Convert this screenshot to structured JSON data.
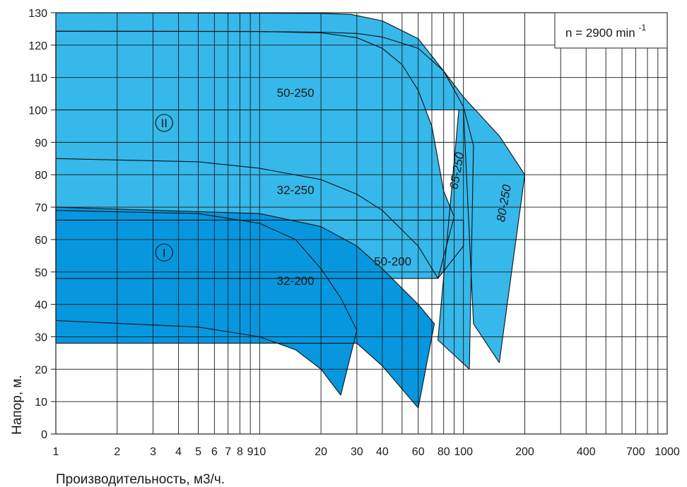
{
  "chart_data": {
    "type": "area",
    "xscale": "log",
    "xlabel": "Производительность, м3/ч.",
    "ylabel": "Напор, м.",
    "xlim": [
      1,
      1000
    ],
    "ylim": [
      0,
      130
    ],
    "grid": true,
    "x_ticks": [
      1,
      2,
      3,
      4,
      5,
      6,
      7,
      8,
      9,
      10,
      20,
      30,
      40,
      50,
      60,
      70,
      80,
      90,
      100,
      200,
      300,
      400,
      500,
      600,
      700,
      800,
      900,
      1000
    ],
    "x_tick_labels": [
      {
        "x": 1,
        "label": "1"
      },
      {
        "x": 2,
        "label": "2"
      },
      {
        "x": 3,
        "label": "3"
      },
      {
        "x": 4,
        "label": "4"
      },
      {
        "x": 5,
        "label": "5"
      },
      {
        "x": 6,
        "label": "6"
      },
      {
        "x": 7,
        "label": "7"
      },
      {
        "x": 8,
        "label": "8"
      },
      {
        "x": 9,
        "label": "9"
      },
      {
        "x": 10,
        "label": "10"
      },
      {
        "x": 20,
        "label": "20"
      },
      {
        "x": 30,
        "label": "30"
      },
      {
        "x": 40,
        "label": "40"
      },
      {
        "x": 60,
        "label": "60"
      },
      {
        "x": 80,
        "label": "80"
      },
      {
        "x": 100,
        "label": "100"
      },
      {
        "x": 200,
        "label": "200"
      },
      {
        "x": 400,
        "label": "400"
      },
      {
        "x": 700,
        "label": "700"
      },
      {
        "x": 1000,
        "label": "1000"
      }
    ],
    "y_ticks": [
      0,
      10,
      20,
      30,
      40,
      50,
      60,
      70,
      80,
      90,
      100,
      110,
      120,
      130
    ],
    "speed_label": "n = 2900 min",
    "speed_exp": "-1",
    "zone_labels": [
      {
        "text": "II",
        "x": 3.4,
        "y": 96
      },
      {
        "text": "I",
        "x": 3.4,
        "y": 56
      }
    ],
    "series": [
      {
        "name": "80-250",
        "color": "#36b8ea",
        "label_x": 165,
        "label_y": 71,
        "label_rot": -80,
        "points": [
          [
            1,
            130
          ],
          [
            20,
            129.8
          ],
          [
            28,
            129.5
          ],
          [
            40,
            127.5
          ],
          [
            60,
            122
          ],
          [
            80,
            112
          ],
          [
            100,
            104
          ],
          [
            150,
            92
          ],
          [
            200,
            80
          ],
          [
            150,
            22
          ],
          [
            112,
            34
          ],
          [
            100,
            100
          ],
          [
            1,
            100
          ]
        ]
      },
      {
        "name": "65-250",
        "color": "#36b8ea",
        "label_x": 97,
        "label_y": 81,
        "label_rot": -80,
        "points": [
          [
            1,
            124.3
          ],
          [
            10,
            124.2
          ],
          [
            20,
            124
          ],
          [
            30,
            123.6
          ],
          [
            40,
            122.5
          ],
          [
            60,
            119
          ],
          [
            80,
            112
          ],
          [
            100,
            101
          ],
          [
            112,
            89
          ],
          [
            107,
            20
          ],
          [
            75,
            29
          ],
          [
            95,
            100
          ],
          [
            1,
            100
          ]
        ]
      },
      {
        "name": "50-250",
        "color": "#36b8ea",
        "label_x": 15,
        "label_y": 104,
        "label_rot": 0,
        "points": [
          [
            1,
            124.3
          ],
          [
            10,
            124.2
          ],
          [
            20,
            123.8
          ],
          [
            30,
            122.3
          ],
          [
            40,
            119
          ],
          [
            50,
            114
          ],
          [
            60,
            106
          ],
          [
            70,
            95
          ],
          [
            80,
            75
          ],
          [
            90,
            67
          ],
          [
            75,
            48
          ],
          [
            1,
            48
          ]
        ]
      },
      {
        "name": "32-250",
        "color": "#36b8ea",
        "label_x": 15,
        "label_y": 74,
        "label_rot": 0,
        "points": [
          [
            1,
            85
          ],
          [
            5,
            84
          ],
          [
            10,
            82
          ],
          [
            20,
            78.5
          ],
          [
            30,
            74
          ],
          [
            40,
            69
          ],
          [
            60,
            58
          ],
          [
            75,
            48
          ],
          [
            100,
            58
          ],
          [
            100,
            66
          ],
          [
            1,
            66
          ]
        ]
      },
      {
        "name": "50-200",
        "color": "#0797df",
        "label_x": 45,
        "label_y": 52,
        "label_rot": 0,
        "points": [
          [
            1,
            70
          ],
          [
            10,
            68
          ],
          [
            20,
            64
          ],
          [
            30,
            58
          ],
          [
            40,
            51
          ],
          [
            60,
            40
          ],
          [
            72,
            34
          ],
          [
            60,
            8
          ],
          [
            40,
            21
          ],
          [
            30,
            28
          ],
          [
            1,
            28
          ]
        ]
      },
      {
        "name": "32-200",
        "color": "#0797df",
        "label_x": 15,
        "label_y": 46,
        "label_rot": 0,
        "points": [
          [
            1,
            69
          ],
          [
            5,
            68
          ],
          [
            10,
            65
          ],
          [
            15,
            60
          ],
          [
            20,
            51
          ],
          [
            25,
            42
          ],
          [
            30,
            32
          ],
          [
            25,
            12
          ],
          [
            20,
            20
          ],
          [
            15,
            26
          ],
          [
            10,
            30
          ],
          [
            5,
            33
          ],
          [
            1,
            35
          ]
        ]
      }
    ]
  }
}
